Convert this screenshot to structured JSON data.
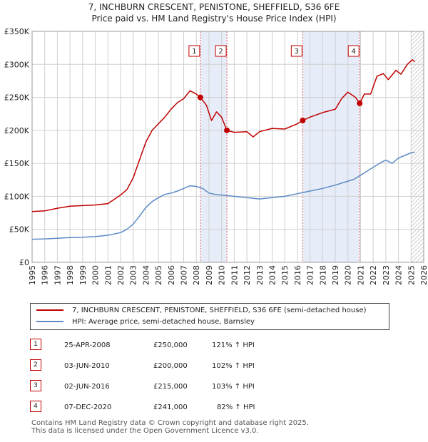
{
  "title_line1": "7, INCHBURN CRESCENT, PENISTONE, SHEFFIELD, S36 6FE",
  "title_line2": "Price paid vs. HM Land Registry's House Price Index (HPI)",
  "legend": {
    "property": "7, INCHBURN CRESCENT, PENISTONE, SHEFFIELD, S36 6FE (semi-detached house)",
    "hpi": "HPI: Average price, semi-detached house, Barnsley"
  },
  "colors": {
    "property": "#c00000",
    "hpi": "#5b8ac6",
    "shade": "#dde6f5",
    "grid": "#d0d0d0",
    "vline": "#e06060"
  },
  "sales": [
    {
      "num": "1",
      "date": "25-APR-2008",
      "price": "£250,000",
      "hpi": "121% ↑ HPI"
    },
    {
      "num": "2",
      "date": "03-JUN-2010",
      "price": "£200,000",
      "hpi": "102% ↑ HPI"
    },
    {
      "num": "3",
      "date": "02-JUN-2016",
      "price": "£215,000",
      "hpi": "103% ↑ HPI"
    },
    {
      "num": "4",
      "date": "07-DEC-2020",
      "price": "£241,000",
      "hpi": "82% ↑ HPI"
    }
  ],
  "footer": {
    "line1": "Contains HM Land Registry data © Crown copyright and database right 2025.",
    "line2": "This data is licensed under the Open Government Licence v3.0."
  },
  "chart_data": {
    "type": "line",
    "xlim": [
      1995,
      2026
    ],
    "ylim": [
      0,
      350000
    ],
    "y_ticks": [
      0,
      50000,
      100000,
      150000,
      200000,
      250000,
      300000,
      350000
    ],
    "y_tick_labels": [
      "£0",
      "£50K",
      "£100K",
      "£150K",
      "£200K",
      "£250K",
      "£300K",
      "£350K"
    ],
    "x_ticks": [
      1995,
      1996,
      1997,
      1998,
      1999,
      2000,
      2001,
      2002,
      2003,
      2004,
      2005,
      2006,
      2007,
      2008,
      2009,
      2010,
      2011,
      2012,
      2013,
      2014,
      2015,
      2016,
      2017,
      2018,
      2019,
      2020,
      2021,
      2022,
      2023,
      2024,
      2025,
      2026
    ],
    "shaded_ranges": [
      [
        2008.32,
        2010.42
      ],
      [
        2016.42,
        2020.93
      ]
    ],
    "hatch_from": 2025.0,
    "series": [
      {
        "name": "7, INCHBURN CRESCENT, PENISTONE, SHEFFIELD, S36 6FE (semi-detached house)",
        "x": [
          1995,
          1996,
          1997,
          1998,
          1999,
          2000,
          2001,
          2002,
          2002.5,
          2003,
          2003.5,
          2004,
          2004.5,
          2005,
          2005.5,
          2006,
          2006.5,
          2007,
          2007.5,
          2008,
          2008.32,
          2008.8,
          2009.2,
          2009.6,
          2010,
          2010.42,
          2011,
          2012,
          2012.5,
          2013,
          2014,
          2015,
          2016,
          2016.42,
          2017,
          2018,
          2019,
          2019.5,
          2020,
          2020.6,
          2020.93,
          2021.3,
          2021.8,
          2022.3,
          2022.8,
          2023.2,
          2023.8,
          2024.2,
          2024.7,
          2025.1,
          2025.3
        ],
        "values": [
          77000,
          78000,
          82000,
          85000,
          86000,
          87000,
          89000,
          102000,
          110000,
          128000,
          155000,
          182000,
          200000,
          210000,
          220000,
          232000,
          242000,
          248000,
          260000,
          255000,
          250000,
          238000,
          215000,
          228000,
          220000,
          200000,
          197000,
          198000,
          190000,
          198000,
          203000,
          202000,
          210000,
          215000,
          220000,
          227000,
          232000,
          248000,
          258000,
          250000,
          241000,
          255000,
          255000,
          282000,
          286000,
          277000,
          291000,
          285000,
          300000,
          307000,
          304000
        ]
      },
      {
        "name": "HPI: Average price, semi-detached house, Barnsley",
        "x": [
          1995,
          1996,
          1997,
          1998,
          1999,
          2000,
          2001,
          2001.5,
          2002,
          2002.5,
          2003,
          2003.5,
          2004,
          2004.5,
          2005,
          2005.5,
          2006,
          2006.5,
          2007,
          2007.5,
          2008,
          2008.5,
          2009,
          2009.5,
          2010,
          2011,
          2012,
          2013,
          2014,
          2015,
          2016,
          2017,
          2018,
          2019,
          2020,
          2020.5,
          2021,
          2021.5,
          2022,
          2022.5,
          2023,
          2023.5,
          2024,
          2024.5,
          2025,
          2025.3
        ],
        "values": [
          35000,
          35500,
          36500,
          37500,
          38000,
          39000,
          41000,
          43000,
          45000,
          50000,
          58000,
          70000,
          83000,
          92000,
          98000,
          103000,
          105000,
          108000,
          112000,
          116000,
          115000,
          112000,
          105000,
          103000,
          102000,
          100000,
          98000,
          96000,
          98000,
          100000,
          104000,
          108000,
          112000,
          117000,
          123000,
          126000,
          132000,
          138000,
          144000,
          150000,
          155000,
          150000,
          158000,
          162000,
          166000,
          167000
        ]
      }
    ],
    "sale_markers": [
      {
        "label": "1",
        "x": 2008.32,
        "value": 250000
      },
      {
        "label": "2",
        "x": 2010.42,
        "value": 200000
      },
      {
        "label": "3",
        "x": 2016.42,
        "value": 215000
      },
      {
        "label": "4",
        "x": 2020.93,
        "value": 241000
      }
    ]
  }
}
